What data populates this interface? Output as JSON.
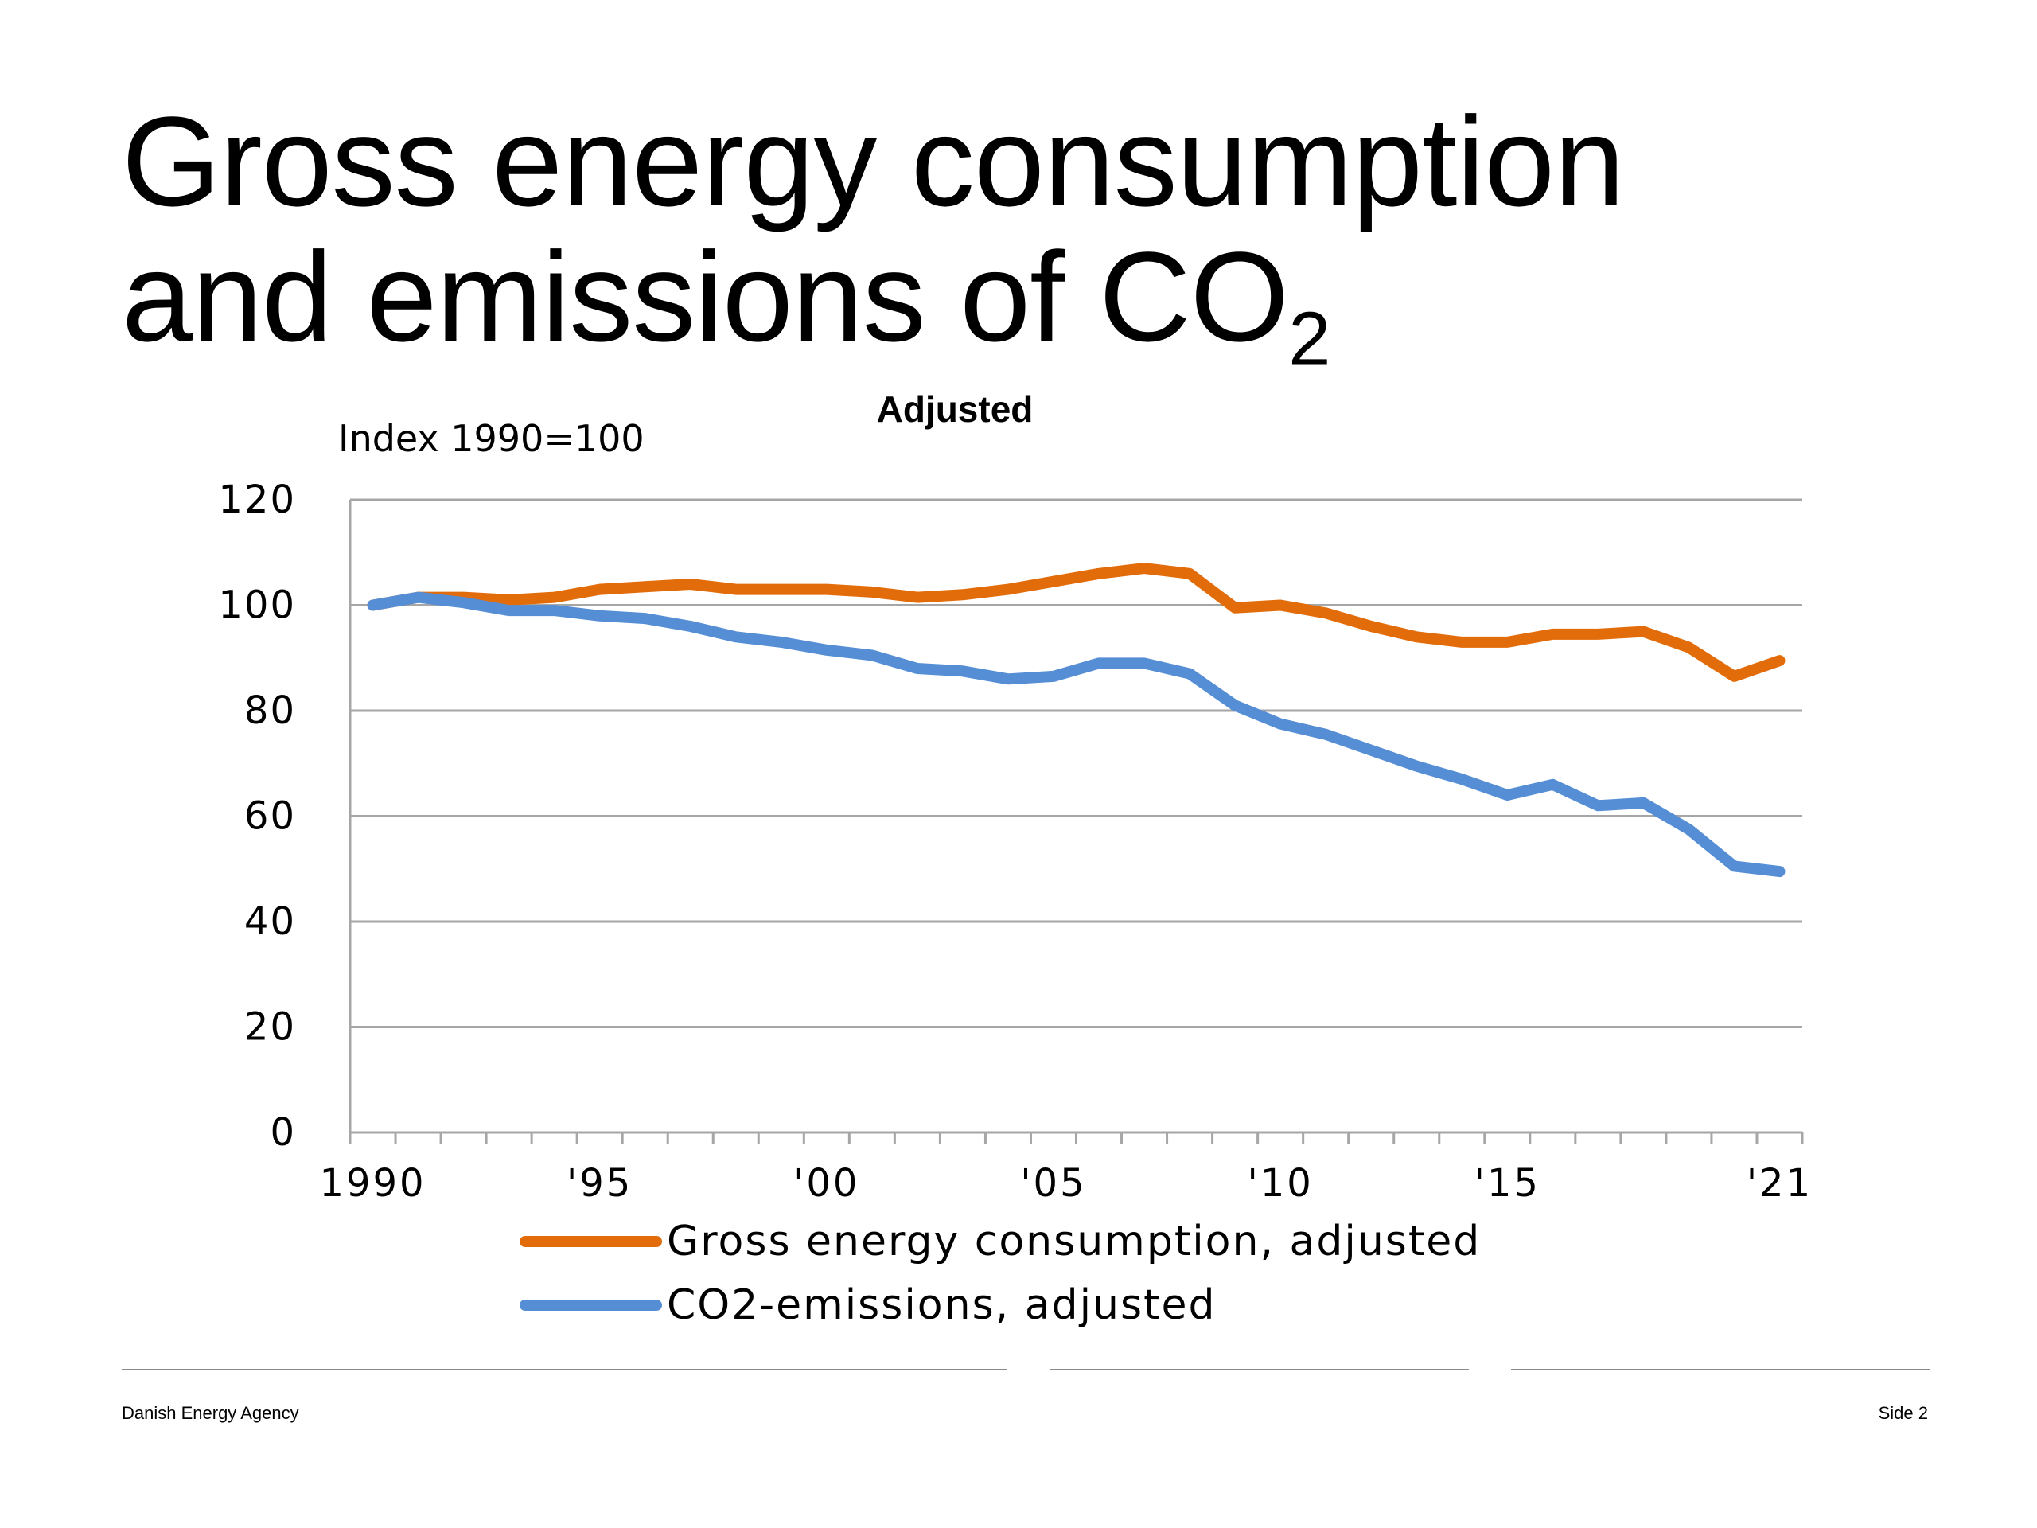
{
  "slide": {
    "title_line1": "Gross energy consumption",
    "title_line2": "and emissions of CO",
    "title_subscript": "2",
    "footer_left": "Danish Energy Agency",
    "footer_right": "Side 2"
  },
  "colors": {
    "gross_energy": "#E36C0A",
    "co2": "#558ED5",
    "grid": "#A6A6A6",
    "axis": "#A6A6A6"
  },
  "chart_data": {
    "type": "line",
    "title": "Adjusted",
    "ylabel": "Index 1990=100",
    "xlabel": "",
    "x": [
      1990,
      1991,
      1992,
      1993,
      1994,
      1995,
      1996,
      1997,
      1998,
      1999,
      2000,
      2001,
      2002,
      2003,
      2004,
      2005,
      2006,
      2007,
      2008,
      2009,
      2010,
      2011,
      2012,
      2013,
      2014,
      2015,
      2016,
      2017,
      2018,
      2019,
      2020,
      2021
    ],
    "x_tick_labels": [
      {
        "x": 1990,
        "label": "1990"
      },
      {
        "x": 1995,
        "label": "'95"
      },
      {
        "x": 2000,
        "label": "'00"
      },
      {
        "x": 2005,
        "label": "'05"
      },
      {
        "x": 2010,
        "label": "'10"
      },
      {
        "x": 2015,
        "label": "'15"
      },
      {
        "x": 2021,
        "label": "'21"
      }
    ],
    "y_ticks": [
      0,
      20,
      40,
      60,
      80,
      100,
      120
    ],
    "ylim": [
      0,
      120
    ],
    "xlim": [
      1989.5,
      2021.5
    ],
    "grid": true,
    "legend_position": "bottom",
    "series": [
      {
        "name": "Gross energy consumption, adjusted",
        "color_key": "gross_energy",
        "values": [
          100,
          101.5,
          101.5,
          101,
          101.5,
          103,
          103.5,
          104,
          103,
          103,
          103,
          102.5,
          101.5,
          102,
          103,
          104.5,
          106,
          107,
          106,
          99.5,
          100,
          98.5,
          96,
          94,
          93,
          93,
          94.5,
          94.5,
          95,
          92,
          86.5,
          89.5
        ]
      },
      {
        "name": "CO2-emissions, adjusted",
        "color_key": "co2",
        "values": [
          100,
          101.5,
          100.5,
          99,
          99,
          98,
          97.5,
          96,
          94,
          93,
          91.5,
          90.5,
          88,
          87.5,
          86,
          86.5,
          89,
          89,
          87,
          81,
          77.5,
          75.5,
          72.5,
          69.5,
          67,
          64,
          66,
          62,
          62.5,
          57.5,
          50.5,
          49.5
        ]
      }
    ]
  }
}
